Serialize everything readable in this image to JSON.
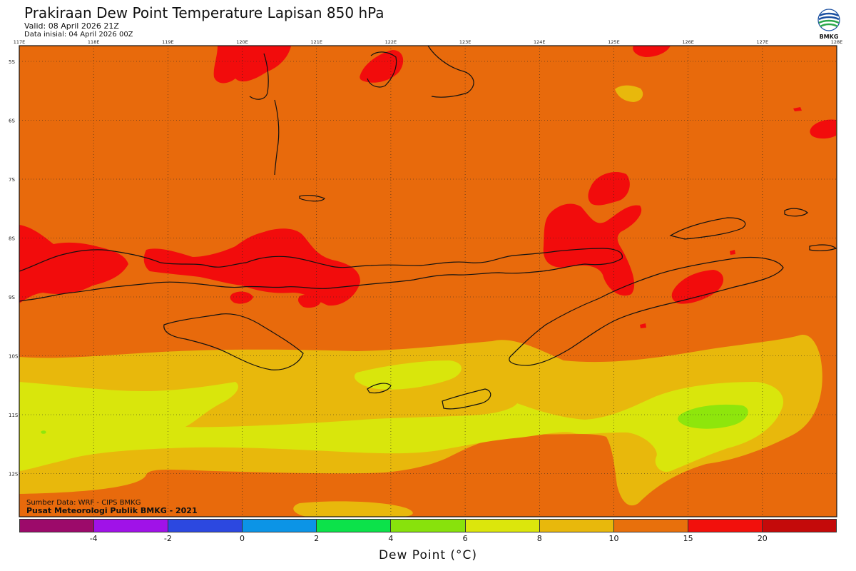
{
  "header": {
    "title": "Prakiraan Dew Point Temperature Lapisan 850 hPa",
    "valid": "Valid: 08 April 2026 21Z",
    "initial": "Data inisial: 04 April 2026 00Z"
  },
  "logo": {
    "text": "BMKG",
    "icon": "bmkg-logo-icon"
  },
  "map": {
    "lon_labels": [
      "117E",
      "118E",
      "119E",
      "120E",
      "121E",
      "122E",
      "123E",
      "124E",
      "125E",
      "126E",
      "127E",
      "128E"
    ],
    "lat_labels": [
      "5S",
      "6S",
      "7S",
      "8S",
      "9S",
      "10S",
      "11S",
      "12S"
    ],
    "source": "Sumber Data: WRF - CIPS BMKG",
    "center": "Pusat Meteorologi Publik BMKG - 2021",
    "colors": {
      "c_10_15": "#e86a0c",
      "c_15_20": "#f20c0c",
      "c_8_10": "#e8b80c",
      "c_6_8": "#d9e60c",
      "c_4_6": "#8ee60c",
      "coast": "#111111",
      "grid": "#222222"
    }
  },
  "legend": {
    "colors": [
      "#9c0a6a",
      "#a012e8",
      "#2c48e0",
      "#0c94e6",
      "#0ce24a",
      "#88e20c",
      "#dce60c",
      "#e8b80c",
      "#e8700c",
      "#f2100c",
      "#c40a0a"
    ],
    "ticks": [
      "-4",
      "-2",
      "0",
      "2",
      "4",
      "6",
      "8",
      "10",
      "15",
      "20"
    ],
    "unit": "Dew Point (°C)"
  }
}
